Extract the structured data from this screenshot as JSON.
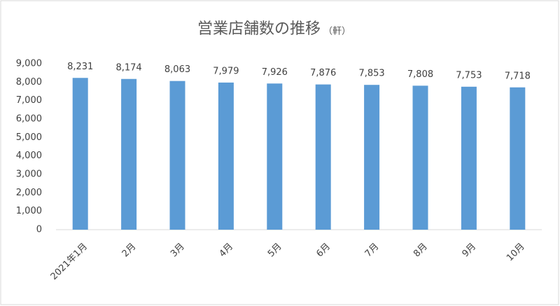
{
  "chart_data": {
    "type": "bar",
    "title": "営業店舗数の推移",
    "subtitle": "（軒）",
    "categories": [
      "2021年1月",
      "2月",
      "3月",
      "4月",
      "5月",
      "6月",
      "7月",
      "8月",
      "9月",
      "10月"
    ],
    "values": [
      8231,
      8174,
      8063,
      7979,
      7926,
      7876,
      7853,
      7808,
      7753,
      7718
    ],
    "value_labels": [
      "8,231",
      "8,174",
      "8,063",
      "7,979",
      "7,926",
      "7,876",
      "7,853",
      "7,808",
      "7,753",
      "7,718"
    ],
    "color": "#5b9bd5",
    "ylim": [
      0,
      9000
    ],
    "yticks": [
      0,
      {
        "value": 1000,
        "label": "1,000"
      },
      {
        "value": 2000,
        "label": "2,000"
      },
      {
        "value": 3000,
        "label": "3,000"
      },
      {
        "value": 4000,
        "label": "4,000"
      },
      {
        "value": 5000,
        "label": "5,000"
      },
      {
        "value": 6000,
        "label": "6,000"
      },
      {
        "value": 7000,
        "label": "7,000"
      },
      {
        "value": 8000,
        "label": "8,000"
      },
      {
        "value": 9000,
        "label": "9,000"
      }
    ],
    "grid": false
  }
}
